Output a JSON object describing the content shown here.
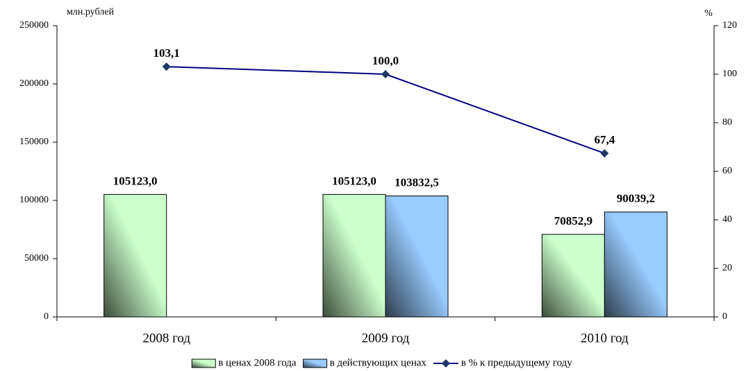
{
  "chart_data": {
    "type": "bar",
    "y_label": "млн.рублей",
    "y2_label": "%",
    "categories": [
      "2008 год",
      "2009 год",
      "2010 год"
    ],
    "series": [
      {
        "name": "в ценах 2008 года",
        "type": "bar",
        "color": "#ccffcc",
        "label_color": "#339966",
        "values": [
          105123.0,
          105123.0,
          70852.9
        ],
        "value_labels": [
          "105123,0",
          "105123,0",
          "70852,9"
        ]
      },
      {
        "name": "в действующих ценах",
        "type": "bar",
        "color": "#99ccff",
        "label_color": "#1f1f6b",
        "values": [
          null,
          103832.5,
          90039.2
        ],
        "value_labels": [
          null,
          "103832,5",
          "90039,2"
        ]
      },
      {
        "name": "в % к предыдущему году",
        "type": "line",
        "axis": "y2",
        "color": "#000080",
        "label_color": "#0000cc",
        "values": [
          103.1,
          100.0,
          67.4
        ],
        "value_labels": [
          "103,1",
          "100,0",
          "67,4"
        ]
      }
    ],
    "ylim": [
      0,
      250000
    ],
    "yticks": [
      0,
      50000,
      100000,
      150000,
      200000,
      250000
    ],
    "y2lim": [
      0,
      120
    ],
    "y2ticks": [
      0,
      20,
      40,
      60,
      80,
      100,
      120
    ],
    "legend": "bottom"
  }
}
